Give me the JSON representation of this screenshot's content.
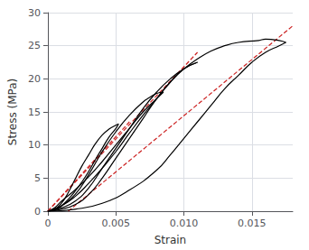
{
  "chart_data": {
    "type": "line",
    "xlabel": "Strain",
    "ylabel": "Stress (MPa)",
    "xlim": [
      0,
      0.018
    ],
    "ylim": [
      0,
      30
    ],
    "xticks": [
      0,
      0.005,
      {
        "value": 0.01,
        "label": "0.010"
      },
      0.015
    ],
    "yticks": [
      0,
      5,
      10,
      15,
      20,
      25,
      30
    ],
    "grid": true,
    "series": [
      {
        "type": "line",
        "line_style": "dashed",
        "color": "#cc2222",
        "x": [
          0.0,
          0.006
        ],
        "values": [
          0.0,
          13.5
        ]
      },
      {
        "type": "line",
        "line_style": "dashed",
        "color": "#cc2222",
        "x": [
          0.0,
          0.011
        ],
        "values": [
          0.0,
          24.0
        ]
      },
      {
        "type": "line",
        "line_style": "dashed",
        "color": "#cc2222",
        "x": [
          0.0015,
          0.018
        ],
        "values": [
          0.0,
          28.0
        ]
      },
      {
        "type": "line",
        "line_style": "solid",
        "color": "black",
        "x": [
          0.0,
          0.0005,
          0.001,
          0.0015,
          0.002,
          0.0025,
          0.003,
          0.0035,
          0.004,
          0.0045,
          0.005,
          0.0052
        ],
        "values": [
          0.0,
          0.3,
          1.2,
          2.8,
          4.8,
          6.8,
          8.5,
          10.2,
          11.5,
          12.4,
          13.0,
          13.2
        ]
      },
      {
        "type": "line",
        "line_style": "solid",
        "color": "black",
        "x": [
          0.0052,
          0.005,
          0.0045,
          0.004,
          0.0035,
          0.003,
          0.0025,
          0.002,
          0.0015,
          0.001,
          0.0005,
          0.0
        ],
        "values": [
          13.2,
          12.5,
          11.2,
          9.5,
          7.8,
          6.0,
          4.4,
          3.0,
          1.8,
          0.8,
          0.2,
          0.0
        ]
      },
      {
        "type": "line",
        "line_style": "solid",
        "color": "black",
        "x": [
          0.0,
          0.0005,
          0.001,
          0.002,
          0.003,
          0.004,
          0.005,
          0.006,
          0.007,
          0.0075,
          0.008,
          0.0085
        ],
        "values": [
          0.0,
          0.2,
          0.8,
          2.5,
          5.5,
          9.0,
          12.0,
          14.5,
          16.5,
          17.2,
          17.8,
          18.0
        ]
      },
      {
        "type": "line",
        "line_style": "solid",
        "color": "black",
        "x": [
          0.0085,
          0.008,
          0.007,
          0.006,
          0.005,
          0.004,
          0.003,
          0.002,
          0.001,
          0.0005,
          0.0
        ],
        "values": [
          18.0,
          17.0,
          15.0,
          12.5,
          10.0,
          7.5,
          5.2,
          3.2,
          1.5,
          0.5,
          0.0
        ]
      },
      {
        "type": "line",
        "line_style": "solid",
        "color": "black",
        "x": [
          0.0,
          0.001,
          0.002,
          0.003,
          0.004,
          0.005,
          0.006,
          0.007,
          0.008,
          0.009,
          0.01,
          0.011
        ],
        "values": [
          0.0,
          0.5,
          1.5,
          3.5,
          6.5,
          9.5,
          12.5,
          15.5,
          18.0,
          20.0,
          21.5,
          22.5
        ]
      },
      {
        "type": "line",
        "line_style": "solid",
        "color": "black",
        "x": [
          0.011,
          0.01,
          0.009,
          0.008,
          0.007,
          0.006,
          0.005,
          0.004,
          0.003,
          0.002,
          0.001,
          0.0
        ],
        "values": [
          22.5,
          21.5,
          19.5,
          17.0,
          14.5,
          11.8,
          9.0,
          6.5,
          4.2,
          2.2,
          0.8,
          0.0
        ]
      },
      {
        "type": "line",
        "line_style": "solid",
        "color": "black",
        "x": [
          0.0,
          0.001,
          0.002,
          0.003,
          0.004,
          0.005,
          0.006,
          0.007,
          0.008,
          0.009,
          0.01,
          0.011,
          0.012,
          0.013,
          0.014,
          0.0155,
          0.016,
          0.017,
          0.0175
        ],
        "values": [
          0.0,
          0.3,
          1.0,
          2.5,
          5.0,
          8.0,
          11.0,
          14.0,
          17.0,
          19.5,
          21.5,
          23.0,
          24.2,
          25.0,
          25.5,
          25.8,
          26.0,
          25.8,
          25.5
        ]
      },
      {
        "type": "line",
        "line_style": "solid",
        "color": "black",
        "x": [
          0.0175,
          0.017,
          0.016,
          0.015,
          0.014,
          0.013,
          0.012,
          0.011,
          0.01,
          0.009,
          0.008,
          0.006,
          0.004,
          0.002,
          0.0
        ],
        "values": [
          25.5,
          25.0,
          24.0,
          22.5,
          20.5,
          18.5,
          16.0,
          13.5,
          11.0,
          8.5,
          6.2,
          3.2,
          1.2,
          0.3,
          0.0
        ]
      }
    ]
  }
}
